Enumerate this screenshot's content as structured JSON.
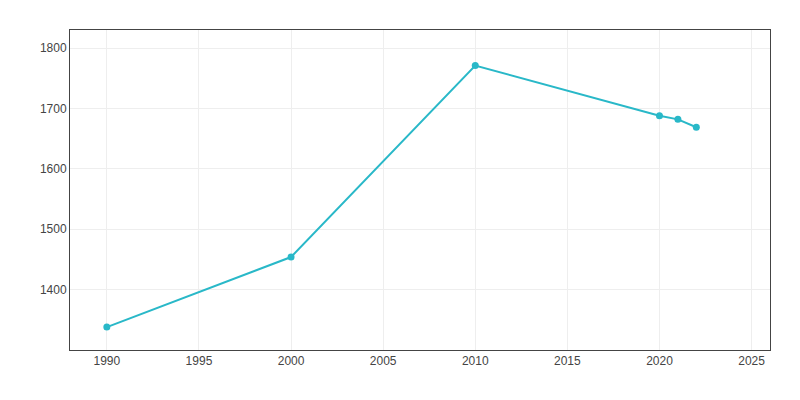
{
  "chart_data": {
    "type": "line",
    "x": [
      1990,
      2000,
      2010,
      2020,
      2021,
      2022
    ],
    "values": [
      1338,
      1454,
      1771,
      1688,
      1682,
      1669
    ],
    "color": "#29b8c8",
    "marker": "circle",
    "xlim": [
      1988,
      2026
    ],
    "ylim": [
      1300,
      1830
    ],
    "xticks": [
      1990,
      1995,
      2000,
      2005,
      2010,
      2015,
      2020,
      2025
    ],
    "yticks": [
      1400,
      1500,
      1600,
      1700,
      1800
    ],
    "grid": true
  }
}
